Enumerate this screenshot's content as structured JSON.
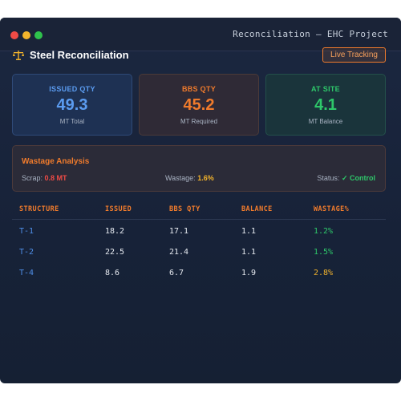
{
  "window": {
    "title": "Reconciliation — EHC Project"
  },
  "header": {
    "title": "Steel Reconciliation",
    "icon": "scale-icon",
    "live_button": "Live Tracking"
  },
  "cards": [
    {
      "label": "ISSUED QTY",
      "value": "49.3",
      "sub": "MT Total",
      "color": "#5b9cf1"
    },
    {
      "label": "BBS QTY",
      "value": "45.2",
      "sub": "MT Required",
      "color": "#f07b2c"
    },
    {
      "label": "AT SITE",
      "value": "4.1",
      "sub": "MT Balance",
      "color": "#2ec86a"
    }
  ],
  "wastage": {
    "title": "Wastage Analysis",
    "scrap_label": "Scrap:",
    "scrap_value": "0.8 MT",
    "wastage_label": "Wastage:",
    "wastage_value": "1.6%",
    "status_label": "Status:",
    "status_value": "✓ Control"
  },
  "table": {
    "headers": [
      "STRUCTURE",
      "ISSUED",
      "BBS QTY",
      "BALANCE",
      "WASTAGE%"
    ],
    "rows": [
      {
        "structure": "T-1",
        "issued": "18.2",
        "bbs": "17.1",
        "balance": "1.1",
        "wastage": "1.2%",
        "wastage_color": "#2ec86a"
      },
      {
        "structure": "T-2",
        "issued": "22.5",
        "bbs": "21.4",
        "balance": "1.1",
        "wastage": "1.5%",
        "wastage_color": "#2ec86a"
      },
      {
        "structure": "T-4",
        "issued": "8.6",
        "bbs": "6.7",
        "balance": "1.9",
        "wastage": "2.8%",
        "wastage_color": "#f3b42c"
      }
    ]
  }
}
